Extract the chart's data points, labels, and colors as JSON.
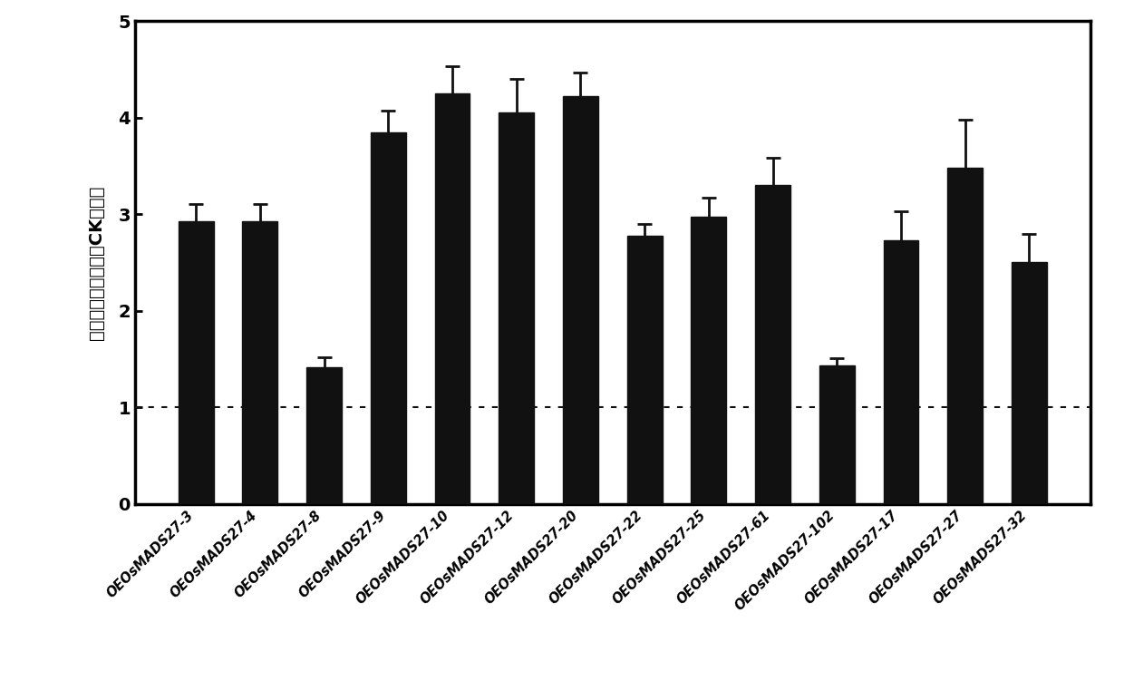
{
  "categories": [
    "OEOsMADS27-3",
    "OEOsMADS27-4",
    "OEOsMADS27-8",
    "OEOsMADS27-9",
    "OEOsMADS27-10",
    "OEOsMADS27-12",
    "OEOsMADS27-20",
    "OEOsMADS27-22",
    "OEOsMADS27-25",
    "OEOsMADS27-61",
    "OEOsMADS27-102",
    "OEOsMADS27-17",
    "OEOsMADS27-27",
    "OEOsMADS27-32"
  ],
  "values": [
    2.93,
    2.93,
    1.42,
    3.85,
    4.25,
    4.05,
    4.22,
    2.78,
    2.97,
    3.3,
    1.43,
    2.73,
    3.48,
    2.5
  ],
  "errors": [
    0.18,
    0.18,
    0.1,
    0.22,
    0.28,
    0.35,
    0.25,
    0.12,
    0.2,
    0.28,
    0.08,
    0.3,
    0.5,
    0.3
  ],
  "bar_color": "#111111",
  "error_color": "#111111",
  "ylabel": "基因表达水平（相对CK比例）",
  "ylim": [
    0,
    5
  ],
  "yticks": [
    0,
    1,
    2,
    3,
    4,
    5
  ],
  "hline_y": 1.0,
  "hline_color": "#111111",
  "background_color": "#ffffff",
  "bar_width": 0.55
}
